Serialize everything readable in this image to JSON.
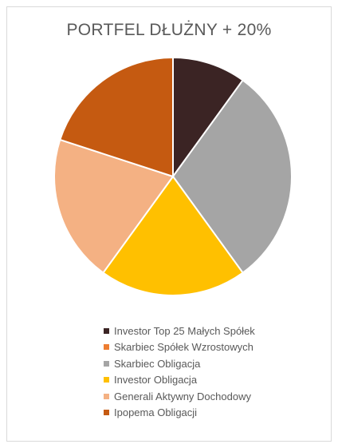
{
  "chart_data": {
    "type": "pie",
    "title": "PORTFEL DŁUŻNY + 20%",
    "categories": [
      "Investor Top 25 Małych Spółek",
      "Skarbiec Spółek Wzrostowych",
      "Skarbiec Obligacja",
      "Investor Obligacja",
      "Generali Aktywny Dochodowy",
      "Ipopema Obligacji"
    ],
    "values": [
      10,
      0,
      30,
      20,
      20,
      20
    ],
    "colors": [
      "#3b2424",
      "#ed7d31",
      "#a5a5a5",
      "#ffc000",
      "#f4b183",
      "#c55a11"
    ],
    "legend_position": "bottom",
    "start_angle": "12 o'clock, clockwise"
  }
}
